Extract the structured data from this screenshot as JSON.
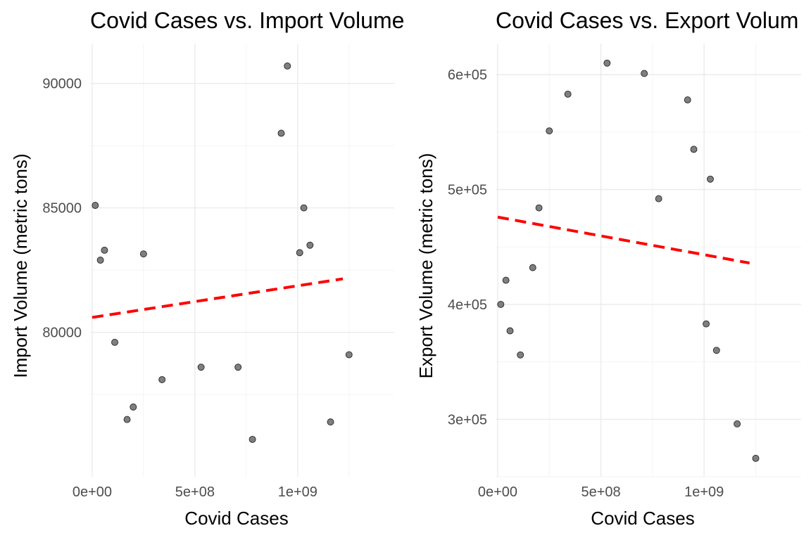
{
  "chart_data": [
    {
      "type": "scatter",
      "title": "Covid Cases vs. Import Volume",
      "xlabel": "Covid Cases",
      "ylabel": "Import Volume (metric tons)",
      "xlim": [
        -10000000.0,
        1470000000.0
      ],
      "ylim": [
        74200,
        91600
      ],
      "x_ticks": [
        0,
        500000000,
        1000000000
      ],
      "x_tick_labels": [
        "0e+00",
        "5e+08",
        "1e+09"
      ],
      "y_ticks": [
        80000,
        85000,
        90000
      ],
      "y_tick_labels": [
        "80000",
        "85000",
        "90000"
      ],
      "grid": true,
      "points": [
        {
          "x": 15000000,
          "y": 85100
        },
        {
          "x": 40000000,
          "y": 82900
        },
        {
          "x": 60000000,
          "y": 83300
        },
        {
          "x": 110000000,
          "y": 79600
        },
        {
          "x": 170000000,
          "y": 76500
        },
        {
          "x": 200000000,
          "y": 77000
        },
        {
          "x": 250000000,
          "y": 83150
        },
        {
          "x": 340000000,
          "y": 78100
        },
        {
          "x": 530000000,
          "y": 78600
        },
        {
          "x": 710000000,
          "y": 78600
        },
        {
          "x": 780000000,
          "y": 75700
        },
        {
          "x": 920000000,
          "y": 88000
        },
        {
          "x": 950000000,
          "y": 90700
        },
        {
          "x": 1010000000,
          "y": 83200
        },
        {
          "x": 1030000000,
          "y": 85000
        },
        {
          "x": 1060000000,
          "y": 83500
        },
        {
          "x": 1160000000,
          "y": 76400
        },
        {
          "x": 1250000000,
          "y": 79100
        }
      ],
      "trend": {
        "x": [
          0,
          1220000000
        ],
        "y": [
          80600,
          82150
        ],
        "color": "#ff0000",
        "style": "dashed"
      }
    },
    {
      "type": "scatter",
      "title": "Covid Cases vs. Export Volum",
      "xlabel": "Covid Cases",
      "ylabel": "Export Volume (metric tons)",
      "xlim": [
        -10000000.0,
        1470000000.0
      ],
      "ylim": [
        250000,
        627000
      ],
      "x_ticks": [
        0,
        500000000,
        1000000000
      ],
      "x_tick_labels": [
        "0e+00",
        "5e+08",
        "1e+09"
      ],
      "y_ticks": [
        300000,
        400000,
        500000,
        600000
      ],
      "y_tick_labels": [
        "3e+05",
        "4e+05",
        "5e+05",
        "6e+05"
      ],
      "grid": true,
      "points": [
        {
          "x": 15000000,
          "y": 400000
        },
        {
          "x": 40000000,
          "y": 421000
        },
        {
          "x": 60000000,
          "y": 377000
        },
        {
          "x": 110000000,
          "y": 356000
        },
        {
          "x": 170000000,
          "y": 432000
        },
        {
          "x": 200000000,
          "y": 484000
        },
        {
          "x": 250000000,
          "y": 551000
        },
        {
          "x": 340000000,
          "y": 583000
        },
        {
          "x": 530000000,
          "y": 610000
        },
        {
          "x": 710000000,
          "y": 601000
        },
        {
          "x": 780000000,
          "y": 492000
        },
        {
          "x": 920000000,
          "y": 578000
        },
        {
          "x": 950000000,
          "y": 535000
        },
        {
          "x": 1010000000,
          "y": 383000
        },
        {
          "x": 1030000000,
          "y": 509000
        },
        {
          "x": 1060000000,
          "y": 360000
        },
        {
          "x": 1160000000,
          "y": 296000
        },
        {
          "x": 1250000000,
          "y": 266000
        }
      ],
      "trend": {
        "x": [
          0,
          1220000000
        ],
        "y": [
          476000,
          436000
        ],
        "color": "#ff0000",
        "style": "dashed"
      }
    }
  ]
}
